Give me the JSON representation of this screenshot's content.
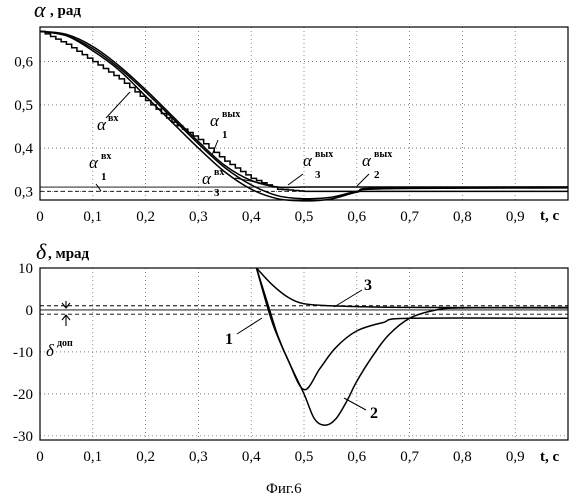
{
  "chart_data": [
    {
      "type": "line",
      "ylabel_symbol": "α",
      "ylabel_unit": ", рад",
      "xlabel": "t, c",
      "xlim": [
        0,
        1.0
      ],
      "ylim": [
        0.28,
        0.68
      ],
      "x_ticks": [
        0,
        0.1,
        0.2,
        0.3,
        0.4,
        0.5,
        0.6,
        0.7,
        0.8,
        0.9
      ],
      "x_tick_labels": [
        "0",
        "0,1",
        "0,2",
        "0,3",
        "0,4",
        "0,5",
        "0,6",
        "0,7",
        "0,8",
        "0,9"
      ],
      "y_ticks": [
        0.3,
        0.4,
        0.5,
        0.6
      ],
      "y_tick_labels": [
        "0,3",
        "0,4",
        "0,5",
        "0,6"
      ],
      "grid": "dotted",
      "series": [
        {
          "name": "α^вх",
          "style": "staircase",
          "x": [
            0,
            0.05,
            0.1,
            0.15,
            0.2,
            0.25,
            0.3,
            0.35,
            0.4,
            0.45,
            0.5,
            1.0
          ],
          "y": [
            0.67,
            0.64,
            0.6,
            0.56,
            0.51,
            0.46,
            0.42,
            0.37,
            0.33,
            0.305,
            0.3,
            0.3
          ]
        },
        {
          "name": "α1^вых",
          "x": [
            0,
            0.05,
            0.1,
            0.15,
            0.2,
            0.25,
            0.3,
            0.35,
            0.4,
            0.45,
            0.5,
            0.55,
            0.6,
            0.65,
            1.0
          ],
          "y": [
            0.67,
            0.66,
            0.63,
            0.585,
            0.53,
            0.47,
            0.41,
            0.355,
            0.315,
            0.29,
            0.283,
            0.286,
            0.3,
            0.308,
            0.31
          ]
        },
        {
          "name": "α3^вых",
          "x": [
            0,
            0.05,
            0.1,
            0.15,
            0.2,
            0.25,
            0.3,
            0.35,
            0.4,
            0.45,
            0.5,
            0.55,
            0.6,
            1.0
          ],
          "y": [
            0.67,
            0.663,
            0.635,
            0.59,
            0.535,
            0.475,
            0.415,
            0.36,
            0.325,
            0.31,
            0.31,
            0.31,
            0.31,
            0.31
          ]
        },
        {
          "name": "α2^вых",
          "x": [
            0,
            0.05,
            0.1,
            0.15,
            0.2,
            0.25,
            0.3,
            0.35,
            0.4,
            0.45,
            0.5,
            0.55,
            0.6,
            0.65,
            1.0
          ],
          "y": [
            0.67,
            0.66,
            0.625,
            0.58,
            0.52,
            0.46,
            0.4,
            0.345,
            0.305,
            0.283,
            0.278,
            0.282,
            0.298,
            0.306,
            0.308
          ]
        }
      ],
      "reference_lines": [
        {
          "name": "α1^вх",
          "y": 0.3,
          "style": "dashed"
        },
        {
          "name": "α3^вх",
          "y": 0.31,
          "style": "solid"
        }
      ],
      "annotations": [
        {
          "base": "α",
          "sup": "вх",
          "sub": ""
        },
        {
          "base": "α",
          "sup": "вых",
          "sub": "1"
        },
        {
          "base": "α",
          "sup": "вх",
          "sub": "1"
        },
        {
          "base": "α",
          "sup": "вх",
          "sub": "3"
        },
        {
          "base": "α",
          "sup": "вых",
          "sub": "3"
        },
        {
          "base": "α",
          "sup": "вых",
          "sub": "2"
        }
      ]
    },
    {
      "type": "line",
      "ylabel_symbol": "δ",
      "ylabel_unit": ", мрад",
      "xlabel": "t, c",
      "xlim": [
        0,
        1.0
      ],
      "ylim": [
        -31,
        10
      ],
      "x_ticks": [
        0,
        0.1,
        0.2,
        0.3,
        0.4,
        0.5,
        0.6,
        0.7,
        0.8,
        0.9
      ],
      "x_tick_labels": [
        "0",
        "0,1",
        "0,2",
        "0,3",
        "0,4",
        "0,5",
        "0,6",
        "0,7",
        "0,8",
        "0,9"
      ],
      "y_ticks": [
        -30,
        -20,
        -10,
        0,
        10
      ],
      "y_tick_labels": [
        "-30",
        "-20",
        "-10",
        "0",
        "10"
      ],
      "grid": "dotted",
      "series": [
        {
          "name": "1",
          "x": [
            0.41,
            0.43,
            0.45,
            0.47,
            0.5,
            0.53,
            0.56,
            0.6,
            0.65,
            0.7,
            1.0
          ],
          "y": [
            10,
            2,
            -6,
            -12,
            -19,
            -14,
            -9,
            -5,
            -3,
            -2,
            -2
          ]
        },
        {
          "name": "2",
          "x": [
            0.41,
            0.44,
            0.47,
            0.5,
            0.52,
            0.54,
            0.56,
            0.58,
            0.6,
            0.63,
            0.66,
            0.7,
            0.75,
            0.8,
            1.0
          ],
          "y": [
            10,
            -3,
            -12,
            -20,
            -26,
            -27.5,
            -26,
            -22,
            -17,
            -11,
            -6,
            -2,
            0,
            0.5,
            0.6
          ]
        },
        {
          "name": "3",
          "x": [
            0.41,
            0.44,
            0.47,
            0.5,
            0.55,
            0.6,
            0.7,
            1.0
          ],
          "y": [
            10,
            6,
            3,
            1.5,
            1,
            0.8,
            0.6,
            0.5
          ]
        }
      ],
      "reference_lines": [
        {
          "y": 1,
          "style": "dashed"
        },
        {
          "y": -1,
          "style": "dashed"
        },
        {
          "y": 0,
          "style": "solid"
        }
      ],
      "annotations": [
        {
          "base": "δ",
          "sup": "доп",
          "sub": ""
        },
        {
          "text": "1"
        },
        {
          "text": "2"
        },
        {
          "text": "3"
        }
      ]
    }
  ],
  "caption": "Фиг.6"
}
